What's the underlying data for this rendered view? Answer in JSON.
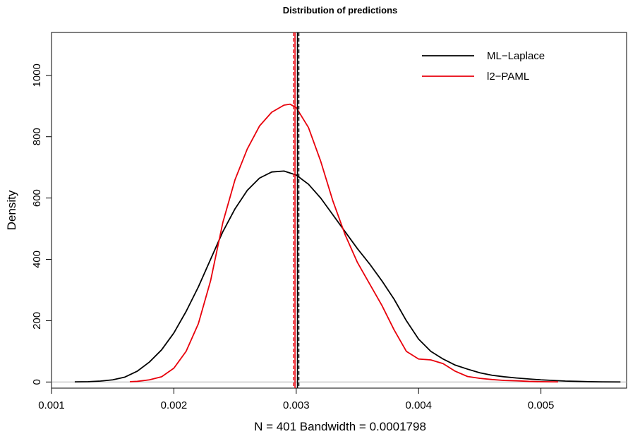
{
  "chart_data": {
    "type": "line",
    "title": "Distribution of predictions",
    "xlabel": "N = 401   Bandwidth = 0.0001798",
    "ylabel": "Density",
    "xlim": [
      0.001,
      0.0057
    ],
    "ylim": [
      -20,
      1140
    ],
    "xticks": [
      0.001,
      0.002,
      0.003,
      0.004,
      0.005
    ],
    "xtick_labels": [
      "0.001",
      "0.002",
      "0.003",
      "0.004",
      "0.005"
    ],
    "yticks": [
      0,
      200,
      400,
      600,
      800,
      1000
    ],
    "ytick_labels": [
      "0",
      "200",
      "400",
      "600",
      "800",
      "1000"
    ],
    "legend_position": "top-right",
    "grid": false,
    "baseline": 0,
    "baseline_color": "#b0b0b0",
    "series": [
      {
        "name": "ML−Laplace",
        "color": "#000000",
        "mean": 0.00301,
        "x": [
          0.00119,
          0.0013,
          0.0014,
          0.0015,
          0.0016,
          0.0017,
          0.0018,
          0.0019,
          0.002,
          0.0021,
          0.0022,
          0.0023,
          0.0024,
          0.0025,
          0.0026,
          0.0027,
          0.0028,
          0.0029,
          0.003,
          0.0031,
          0.0032,
          0.0033,
          0.0034,
          0.0035,
          0.0036,
          0.0037,
          0.0038,
          0.0039,
          0.004,
          0.0041,
          0.0042,
          0.0043,
          0.0044,
          0.0045,
          0.0046,
          0.0047,
          0.0048,
          0.0049,
          0.005,
          0.0051,
          0.0052,
          0.0053,
          0.0054,
          0.0055,
          0.00565
        ],
        "y": [
          0.5,
          1,
          3,
          7,
          16,
          35,
          65,
          105,
          160,
          230,
          310,
          400,
          490,
          565,
          625,
          665,
          685,
          688,
          675,
          645,
          600,
          545,
          490,
          435,
          385,
          330,
          270,
          200,
          140,
          100,
          75,
          55,
          42,
          30,
          22,
          17,
          13,
          10,
          7,
          5,
          3,
          2,
          1,
          0.5,
          0.2
        ]
      },
      {
        "name": "l2−PAML",
        "color": "#e8000b",
        "mean": 0.00299,
        "x": [
          0.00164,
          0.0017,
          0.0018,
          0.0019,
          0.002,
          0.0021,
          0.0022,
          0.0023,
          0.0024,
          0.0025,
          0.0026,
          0.0027,
          0.0028,
          0.0029,
          0.00295,
          0.003,
          0.0031,
          0.0032,
          0.0033,
          0.0034,
          0.0035,
          0.0036,
          0.0037,
          0.0038,
          0.0039,
          0.004,
          0.0041,
          0.0042,
          0.0043,
          0.0044,
          0.0045,
          0.0046,
          0.0047,
          0.0048,
          0.0049,
          0.005,
          0.00514
        ],
        "y": [
          1,
          2,
          7,
          17,
          45,
          100,
          190,
          330,
          520,
          660,
          760,
          835,
          880,
          903,
          906,
          895,
          830,
          720,
          590,
          480,
          390,
          320,
          250,
          170,
          100,
          75,
          72,
          60,
          35,
          18,
          12,
          8,
          5,
          4,
          2,
          1,
          0.5
        ]
      }
    ]
  }
}
